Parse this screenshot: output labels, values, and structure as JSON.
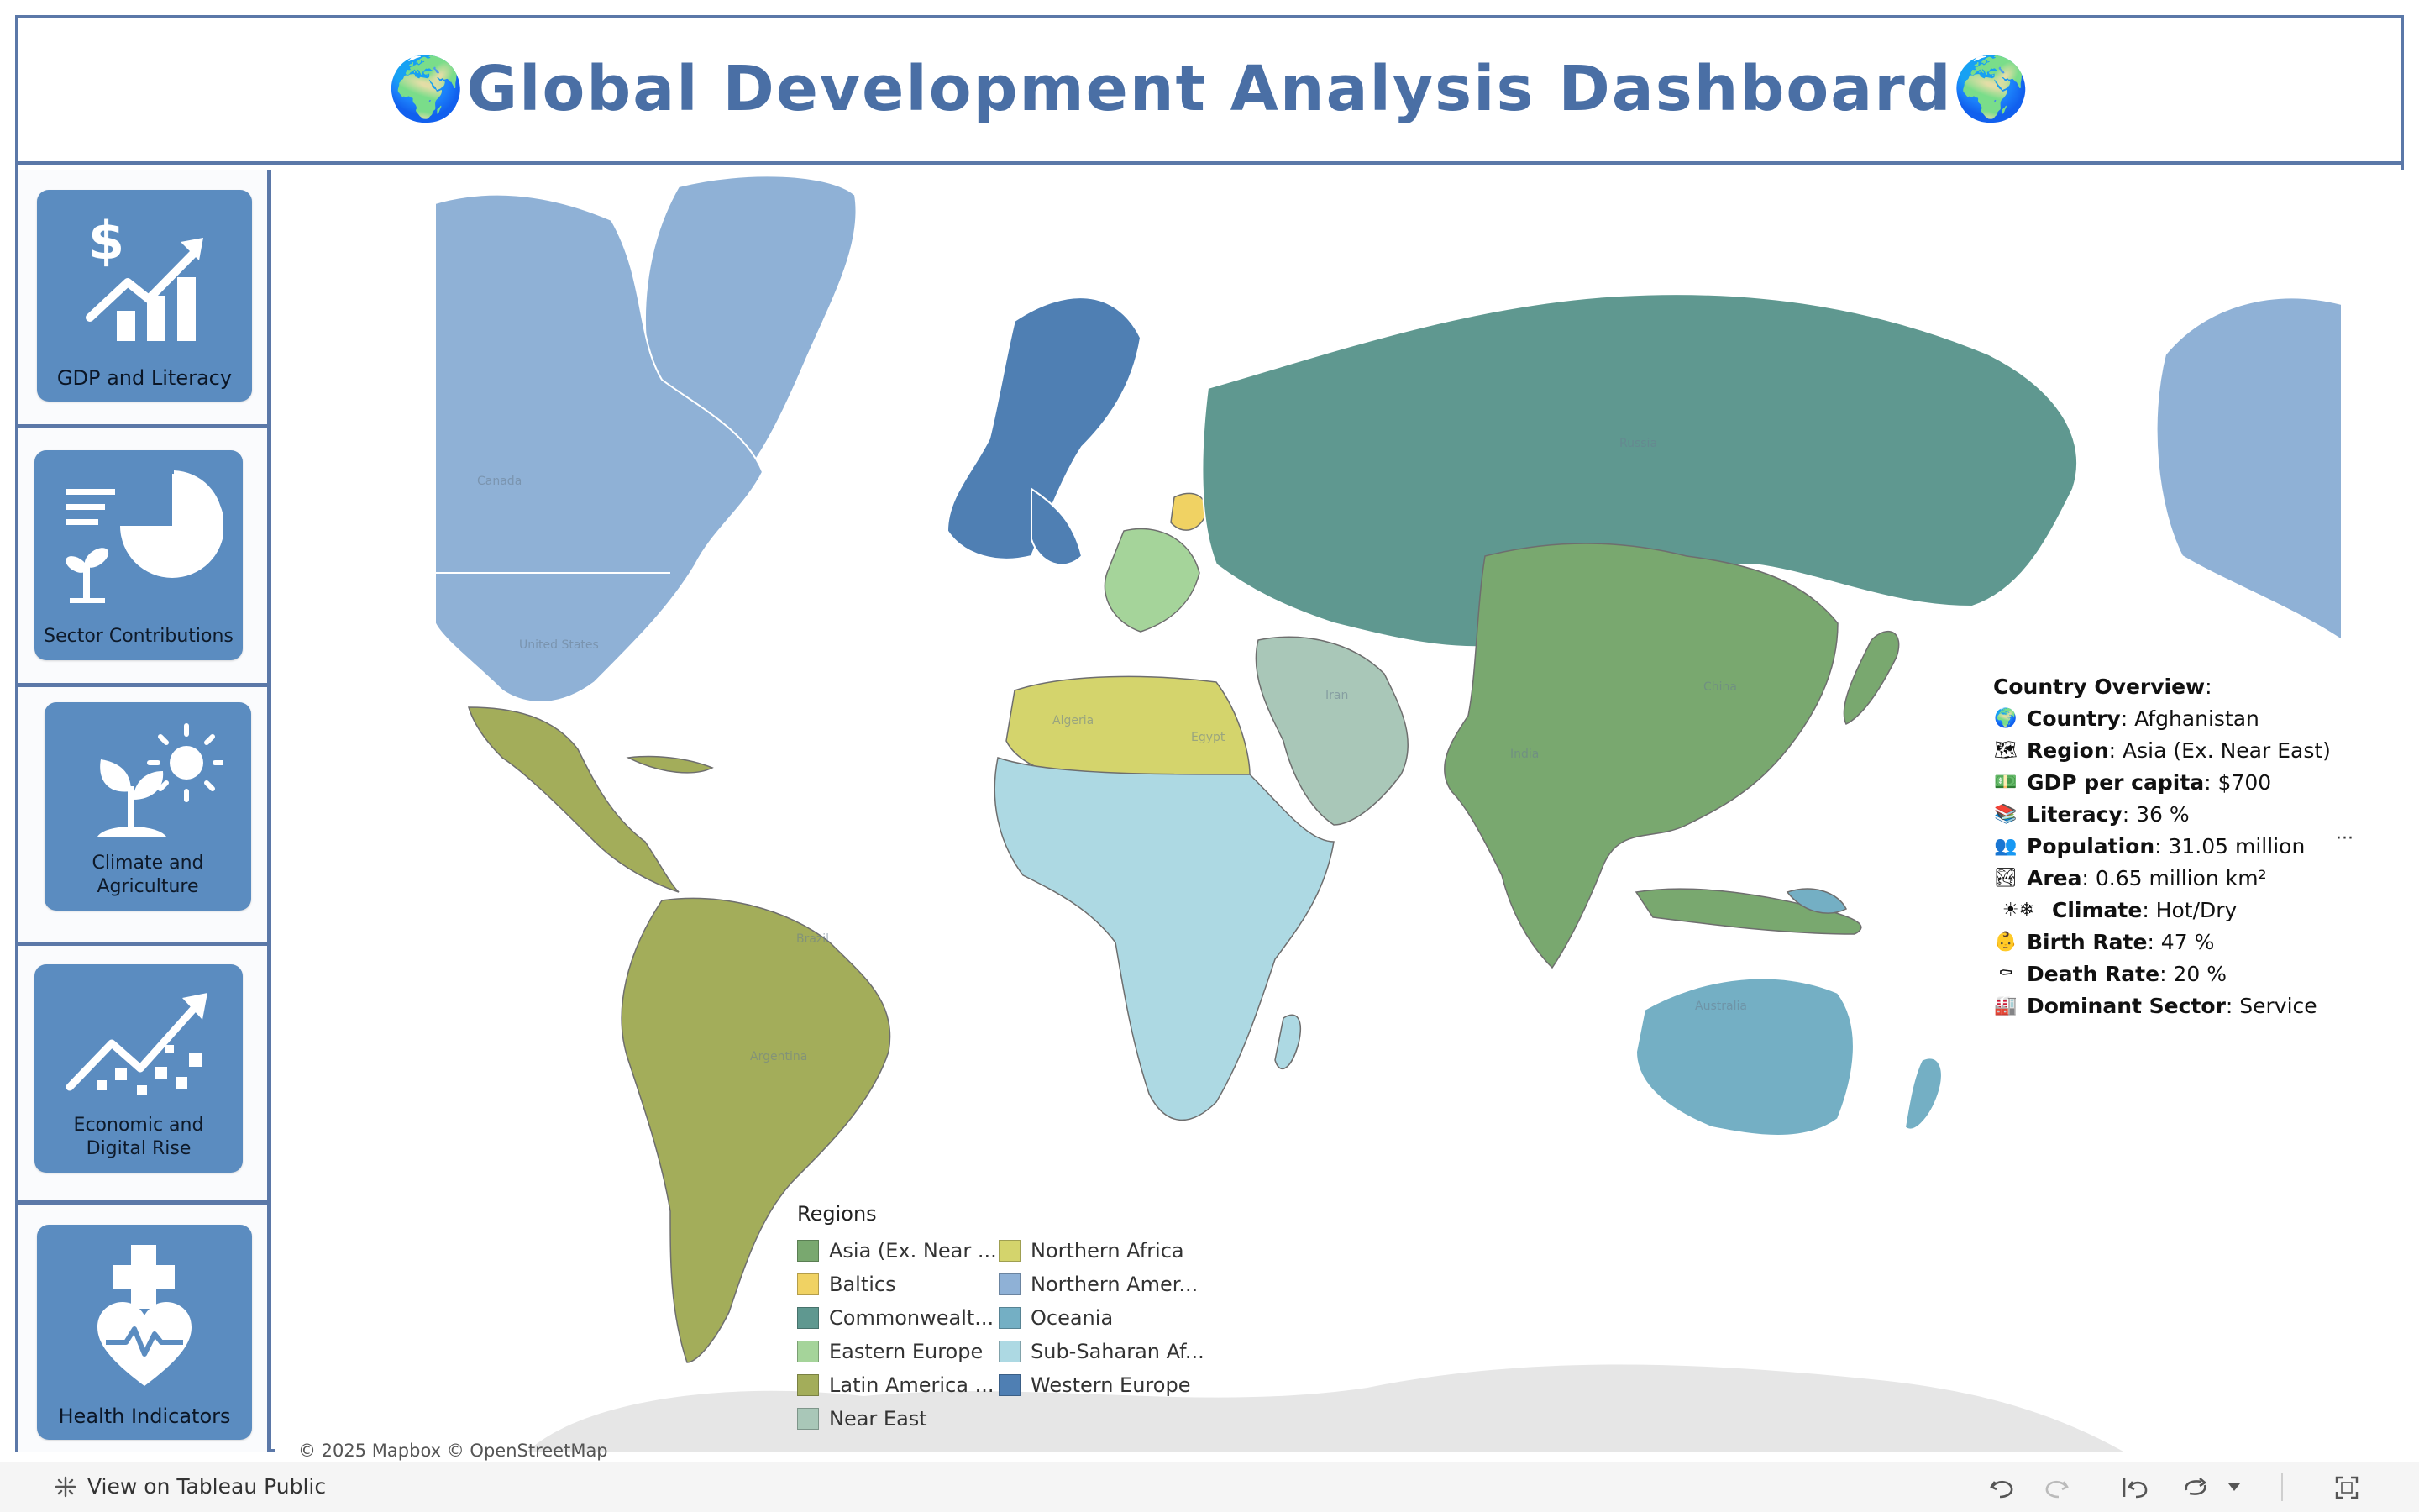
{
  "title": "🌍Global Development Analysis Dashboard🌍",
  "nav": [
    {
      "label": "GDP and Literacy"
    },
    {
      "label": "Sector Contributions"
    },
    {
      "label": "Climate and Agriculture"
    },
    {
      "label": "Economic and Digital Rise"
    },
    {
      "label": "Health Indicators"
    }
  ],
  "tooltip": {
    "heading": "Country Overview",
    "colon": ":",
    "rows": [
      {
        "icon": "globe-icon",
        "glyph": "🌍",
        "key": "Country",
        "value": ": Afghanistan"
      },
      {
        "icon": "map-icon",
        "glyph": "🗺",
        "key": "Region",
        "value": ": Asia (Ex. Near East)"
      },
      {
        "icon": "money-icon",
        "glyph": "💵",
        "key": "GDP per capita",
        "value": ": $700"
      },
      {
        "icon": "books-icon",
        "glyph": "📚",
        "key": "Literacy",
        "value": ": 36 %"
      },
      {
        "icon": "people-icon",
        "glyph": "👥",
        "key": "Population",
        "value": ": 31.05 million"
      },
      {
        "icon": "landscape-icon",
        "glyph": "🏞",
        "key": "Area",
        "value": ": 0.65 million  km²"
      },
      {
        "icon": "climate-icon",
        "glyph": "☀❄",
        "key": "Climate",
        "value": ": Hot/Dry"
      },
      {
        "icon": "baby-icon",
        "glyph": "👶",
        "key": "Birth Rate",
        "value": ": 47 %"
      },
      {
        "icon": "coffin-icon",
        "glyph": "⚰",
        "key": "Death Rate",
        "value": ": 20 %"
      },
      {
        "icon": "factory-icon",
        "glyph": "🏭",
        "key": "Dominant Sector",
        "value": ": Service"
      }
    ],
    "more": "···"
  },
  "legend": {
    "title": "Regions",
    "items": [
      {
        "label": "Asia (Ex. Near ...",
        "color": "#79a86f"
      },
      {
        "label": "Northern Africa",
        "color": "#d4d46c"
      },
      {
        "label": "Baltics",
        "color": "#f0d263"
      },
      {
        "label": "Northern Amer...",
        "color": "#8fb1d6"
      },
      {
        "label": "Commonwealt...",
        "color": "#5f9890"
      },
      {
        "label": "Oceania",
        "color": "#74afc4"
      },
      {
        "label": "Eastern Europe",
        "color": "#a5d49a"
      },
      {
        "label": "Sub-Saharan Af...",
        "color": "#add9e3"
      },
      {
        "label": "Latin America ...",
        "color": "#a3ad5a"
      },
      {
        "label": "Western Europe",
        "color": "#4f7fb3"
      },
      {
        "label": "Near East",
        "color": "#a9c7b8"
      }
    ]
  },
  "map_labels": {
    "canada": "Canada",
    "usa": "United States",
    "brazil": "Brazil",
    "russia": "Russia",
    "china": "China",
    "australia": "Australia",
    "algeria": "Algeria",
    "egypt": "Egypt",
    "iran": "Iran",
    "india": "India",
    "argentina": "Argentina"
  },
  "attribution": "© 2025 Mapbox  © OpenStreetMap",
  "footer": {
    "view_label": "View on Tableau Public"
  }
}
